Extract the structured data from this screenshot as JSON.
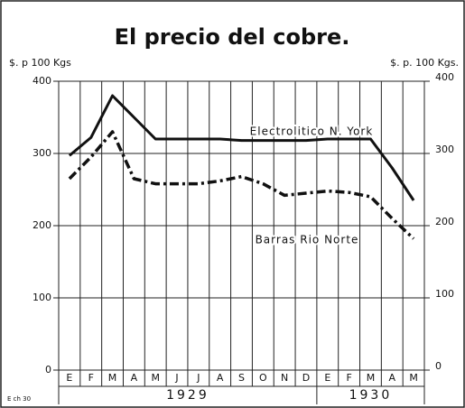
{
  "chart_data": {
    "type": "line",
    "title": "El precio del cobre.",
    "y_label_left": "$. p 100 Kgs",
    "y_label_right": "$. p. 100 Kgs.",
    "categories": [
      "E",
      "F",
      "M",
      "A",
      "M",
      "J",
      "J",
      "A",
      "S",
      "O",
      "N",
      "D",
      "E",
      "F",
      "M",
      "A",
      "M"
    ],
    "years": [
      "1929",
      "1930"
    ],
    "series": [
      {
        "name": "Electrolitico N. York",
        "color": "#111111",
        "style": "solid",
        "values": [
          297,
          322,
          380,
          350,
          320,
          320,
          320,
          320,
          318,
          318,
          318,
          318,
          320,
          320,
          320,
          280,
          235
        ]
      },
      {
        "name": "Barras Rio Norte",
        "color": "#111111",
        "style": "dashdot",
        "values": [
          265,
          295,
          330,
          265,
          258,
          258,
          258,
          262,
          268,
          258,
          242,
          245,
          248,
          246,
          240,
          210,
          182
        ]
      }
    ],
    "ylim": [
      0,
      400
    ],
    "yticks": [
      0,
      100,
      200,
      300,
      400
    ],
    "y2lim": [
      0,
      400
    ],
    "y2ticks": [
      0,
      100,
      200,
      300,
      400
    ],
    "grid": true,
    "footnote": "E ch 30"
  }
}
